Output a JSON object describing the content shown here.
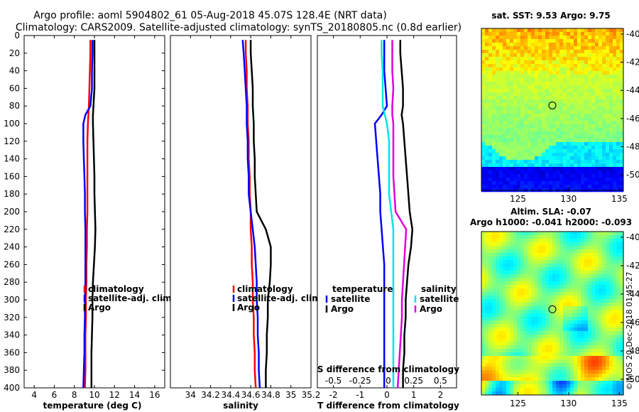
{
  "title": {
    "line1": "Argo profile: aoml 5904802_61 05-Aug-2018 45.07S 128.4E (NRT data)",
    "line2": "Climatology: CARS2009. Satellite-adjusted climatology: synTS_20180805.nc (0.8d earlier)"
  },
  "credit": "©IMOS 20-Dec-2018 01:45:27",
  "colors": {
    "red": "#ff0000",
    "blue": "#0000ff",
    "black": "#000000",
    "cyan": "#00e5e5",
    "magenta": "#e000e0"
  },
  "depth_ticks": [
    "0",
    "20",
    "40",
    "60",
    "80",
    "100",
    "120",
    "140",
    "160",
    "180",
    "200",
    "220",
    "240",
    "260",
    "280",
    "300",
    "320",
    "340",
    "360",
    "380",
    "400"
  ],
  "chart_data": [
    {
      "type": "line",
      "id": "temperature",
      "xlabel": "temperature (deg C)",
      "ylabel": "depth",
      "xlim": [
        3,
        17
      ],
      "ylim": [
        400,
        0
      ],
      "x_ticks": [
        4,
        6,
        8,
        10,
        12,
        14,
        16
      ],
      "x_tick_labels": [
        "4",
        "6",
        "8",
        "10",
        "12",
        "14",
        "16"
      ],
      "depth": [
        5,
        20,
        40,
        60,
        80,
        90,
        100,
        120,
        140,
        160,
        180,
        200,
        220,
        240,
        260,
        280,
        300,
        320,
        340,
        360,
        380,
        400
      ],
      "series": [
        {
          "name": "climatology",
          "color": "#ff0000",
          "values": [
            9.6,
            9.6,
            9.55,
            9.5,
            9.45,
            9.4,
            9.35,
            9.3,
            9.3,
            9.3,
            9.3,
            9.3,
            9.25,
            9.25,
            9.2,
            9.2,
            9.15,
            9.15,
            9.1,
            9.1,
            9.1,
            9.05
          ]
        },
        {
          "name": "satellite-adj. clim.",
          "color": "#0000ff",
          "values": [
            9.8,
            9.8,
            9.75,
            9.75,
            9.6,
            9.1,
            8.9,
            8.9,
            8.95,
            9.0,
            9.05,
            9.05,
            9.1,
            9.1,
            9.1,
            9.1,
            9.05,
            9.05,
            9.0,
            9.0,
            8.95,
            8.9
          ]
        },
        {
          "name": "Argo",
          "color": "#000000",
          "values": [
            10.0,
            10.0,
            10.0,
            10.0,
            9.9,
            9.85,
            9.85,
            9.9,
            9.95,
            10.0,
            10.0,
            10.05,
            10.1,
            10.05,
            9.95,
            9.85,
            9.8,
            9.8,
            9.75,
            9.7,
            9.7,
            9.7
          ]
        }
      ],
      "legend": [
        "climatology",
        "satellite-adj. clim.",
        "Argo"
      ]
    },
    {
      "type": "line",
      "id": "salinity",
      "xlabel": "salinity",
      "ylabel": "depth",
      "xlim": [
        33.8,
        35.2
      ],
      "ylim": [
        400,
        0
      ],
      "x_ticks": [
        34,
        34.2,
        34.4,
        34.6,
        34.8,
        35,
        35.2
      ],
      "x_tick_labels": [
        "34",
        "34.2",
        "34.4",
        "34.6",
        "34.8",
        "35",
        "35.2"
      ],
      "depth": [
        5,
        20,
        40,
        60,
        80,
        100,
        120,
        140,
        160,
        180,
        200,
        220,
        240,
        260,
        280,
        300,
        320,
        340,
        360,
        380,
        400
      ],
      "series": [
        {
          "name": "climatology",
          "color": "#ff0000",
          "values": [
            34.55,
            34.55,
            34.56,
            34.56,
            34.57,
            34.57,
            34.58,
            34.58,
            34.59,
            34.59,
            34.6,
            34.6,
            34.61,
            34.61,
            34.62,
            34.62,
            34.63,
            34.63,
            34.64,
            34.64,
            34.65
          ]
        },
        {
          "name": "satellite-adj. clim.",
          "color": "#0000ff",
          "values": [
            34.52,
            34.53,
            34.54,
            34.55,
            34.56,
            34.56,
            34.57,
            34.57,
            34.58,
            34.58,
            34.6,
            34.62,
            34.64,
            34.65,
            34.66,
            34.66,
            34.67,
            34.67,
            34.68,
            34.68,
            34.69
          ]
        },
        {
          "name": "Argo",
          "color": "#000000",
          "values": [
            34.6,
            34.6,
            34.61,
            34.62,
            34.62,
            34.63,
            34.63,
            34.64,
            34.64,
            34.65,
            34.66,
            34.75,
            34.8,
            34.8,
            34.79,
            34.77,
            34.77,
            34.76,
            34.76,
            34.75,
            34.75
          ]
        }
      ],
      "legend": [
        "climatology",
        "satellite-adj. clim.",
        "Argo"
      ]
    },
    {
      "type": "line",
      "id": "difference",
      "xlabel": "T difference from climatology",
      "top_xlabel": "S difference from climatology",
      "ylim": [
        400,
        0
      ],
      "x_ticks": [
        -2,
        -1,
        0,
        1,
        2
      ],
      "x_tick_labels": [
        "-2",
        "-1",
        "0",
        "1",
        "2"
      ],
      "s_tick_labels": [
        "-0.5",
        "-0.25",
        "0",
        "0.25",
        "0.5"
      ],
      "depth": [
        5,
        20,
        40,
        60,
        80,
        90,
        100,
        120,
        140,
        160,
        180,
        200,
        220,
        240,
        260,
        280,
        300,
        320,
        340,
        360,
        380,
        400
      ],
      "series": [
        {
          "name": "temperature satellite",
          "group": "temperature",
          "color": "#0000ff",
          "values": [
            -0.1,
            -0.1,
            -0.1,
            -0.05,
            0.0,
            -0.2,
            -0.45,
            -0.4,
            -0.35,
            -0.3,
            -0.25,
            -0.25,
            -0.2,
            -0.15,
            -0.1,
            -0.1,
            -0.1,
            -0.1,
            -0.1,
            -0.1,
            -0.1,
            -0.1
          ]
        },
        {
          "name": "temperature Argo",
          "group": "temperature",
          "color": "#000000",
          "values": [
            0.5,
            0.5,
            0.55,
            0.6,
            0.6,
            0.55,
            0.6,
            0.65,
            0.7,
            0.75,
            0.8,
            0.85,
            0.95,
            0.9,
            0.8,
            0.75,
            0.7,
            0.7,
            0.65,
            0.65,
            0.6,
            0.6
          ]
        },
        {
          "name": "salinity satellite",
          "group": "salinity",
          "color": "#00e5e5",
          "values": [
            -0.05,
            -0.05,
            -0.04,
            -0.04,
            -0.04,
            -0.02,
            0.0,
            0.02,
            0.02,
            0.02,
            0.02,
            0.04,
            0.06,
            0.06,
            0.06,
            0.06,
            0.06,
            0.06,
            0.06,
            0.06,
            0.06,
            0.06
          ]
        },
        {
          "name": "salinity Argo",
          "group": "salinity",
          "color": "#e000e0",
          "values": [
            0.05,
            0.05,
            0.05,
            0.06,
            0.05,
            0.05,
            0.06,
            0.06,
            0.06,
            0.06,
            0.07,
            0.08,
            0.18,
            0.17,
            0.16,
            0.15,
            0.14,
            0.14,
            0.13,
            0.12,
            0.11,
            0.1
          ]
        }
      ],
      "legend_groups": [
        {
          "title": "temperature",
          "items": [
            {
              "label": "satellite",
              "color": "#0000ff"
            },
            {
              "label": "Argo",
              "color": "#000000"
            }
          ]
        },
        {
          "title": "salinity",
          "items": [
            {
              "label": "satellite",
              "color": "#00e5e5"
            },
            {
              "label": "Argo",
              "color": "#e000e0"
            }
          ]
        }
      ]
    },
    {
      "type": "heatmap",
      "id": "sst-map",
      "title": "sat. SST: 9.53 Argo: 9.75",
      "x_tick_labels": [
        "125",
        "130",
        "135"
      ],
      "x_ticks": [
        125,
        130,
        135
      ],
      "y_tick_labels": [
        "-40",
        "-42",
        "-44",
        "-46",
        "-48",
        "-50"
      ],
      "y_ticks": [
        -40,
        -42,
        -44,
        -46,
        -48,
        -50
      ],
      "xlim": [
        121.4,
        135.4
      ],
      "ylim": [
        -51.1,
        -39.6
      ],
      "marker": {
        "lon": 128.4,
        "lat": -45.07
      },
      "value_range": [
        6,
        15
      ]
    },
    {
      "type": "heatmap",
      "id": "sla-map",
      "title_line1": "Altim. SLA: -0.07",
      "title_line2": "Argo h1000: -0.041 h2000: -0.093",
      "x_tick_labels": [
        "125",
        "130",
        "135"
      ],
      "x_ticks": [
        125,
        130,
        135
      ],
      "y_tick_labels": [
        "-40",
        "-42",
        "-44",
        "-46",
        "-48",
        "-50"
      ],
      "y_ticks": [
        -40,
        -42,
        -44,
        -46,
        -48,
        -50
      ],
      "xlim": [
        121.4,
        135.4
      ],
      "ylim": [
        -51.1,
        -39.6
      ],
      "marker": {
        "lon": 128.4,
        "lat": -45.07
      },
      "value_range": [
        -0.3,
        0.3
      ]
    }
  ]
}
